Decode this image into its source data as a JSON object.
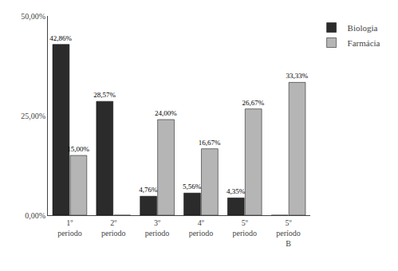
{
  "chart_data": {
    "type": "bar",
    "categories": [
      "1º\nperiodo",
      "2º\nperiodo",
      "3º\nperiodo",
      "4º\nperiodo",
      "5º\nperiodo",
      "5º\nperíodo\nB"
    ],
    "series": [
      {
        "name": "Biologia",
        "color": "#2b2b2b",
        "values": [
          42.86,
          28.57,
          4.76,
          5.56,
          4.35,
          0.0
        ],
        "value_labels": [
          "42,86%",
          "28,57%",
          "4,76%",
          "5,56%",
          "4,35%",
          null
        ]
      },
      {
        "name": "Farmácia",
        "color": "#b5b5b5",
        "values": [
          15.0,
          0.0,
          24.0,
          16.67,
          26.67,
          33.33
        ],
        "value_labels": [
          "15,00%",
          null,
          "24,00%",
          "16,67%",
          "26,67%",
          "33,33%"
        ]
      }
    ],
    "ylim": [
      0,
      50
    ],
    "yticks": [
      {
        "value": 0,
        "label": "0,00%"
      },
      {
        "value": 25,
        "label": "25,00%"
      },
      {
        "value": 50,
        "label": "50,00%"
      }
    ],
    "grid": false,
    "legend": "right",
    "data_labels": true
  }
}
